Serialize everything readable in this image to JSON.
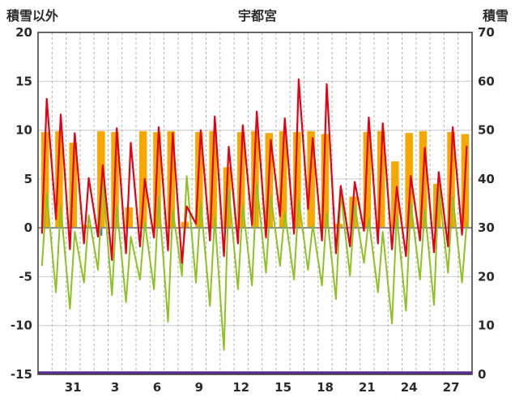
{
  "chart_data": {
    "type": "line",
    "title": "宇都宮",
    "left_axis_title": "積雪以外",
    "right_axis_title": "積雪",
    "left_axis": {
      "min": -15,
      "max": 20,
      "tick_step": 5,
      "tick_labels": [
        "20",
        "15",
        "10",
        "5",
        "0",
        "-5",
        "-10",
        "-15"
      ]
    },
    "right_axis": {
      "min": 0,
      "max": 70,
      "tick_step": 10,
      "tick_labels": [
        "70",
        "60",
        "50",
        "40",
        "30",
        "20",
        "10",
        "0"
      ]
    },
    "x_axis": {
      "num_days": 31,
      "tick_labels": [
        {
          "label": "31",
          "day_index": 2
        },
        {
          "label": "3",
          "day_index": 5
        },
        {
          "label": "6",
          "day_index": 8
        },
        {
          "label": "9",
          "day_index": 11
        },
        {
          "label": "12",
          "day_index": 14
        },
        {
          "label": "15",
          "day_index": 17
        },
        {
          "label": "18",
          "day_index": 20
        },
        {
          "label": "21",
          "day_index": 23
        },
        {
          "label": "24",
          "day_index": 26
        },
        {
          "label": "27",
          "day_index": 29
        }
      ]
    },
    "grid": {
      "horizontal": "solid",
      "vertical": "dashed-per-day"
    },
    "series": {
      "red_line": {
        "kind": "line",
        "color_key": "red",
        "daily_max": [
          13.2,
          11.6,
          9.7,
          5.1,
          6.4,
          10.2,
          8.7,
          5.0,
          10.3,
          9.7,
          2.2,
          10.0,
          11.4,
          8.3,
          10.5,
          11.9,
          9.0,
          11.2,
          15.2,
          9.2,
          14.7,
          4.3,
          4.7,
          11.3,
          10.7,
          4.2,
          5.3,
          8.2,
          5.7,
          10.3,
          8.4
        ],
        "daily_min": [
          -0.6,
          0.9,
          -2.2,
          -1.6,
          -0.9,
          -3.3,
          -2.6,
          -1.9,
          -1.0,
          -2.3,
          -3.6,
          0.4,
          -1.3,
          -2.9,
          -1.6,
          0.3,
          -1.0,
          1.2,
          -0.6,
          1.9,
          -1.3,
          -2.6,
          -1.9,
          -0.3,
          -1.6,
          -2.2,
          -2.9,
          -1.3,
          -2.5,
          -1.9,
          -0.7
        ]
      },
      "green_line": {
        "kind": "line",
        "color_key": "green",
        "daily_max": [
          3.6,
          2.2,
          -0.4,
          1.3,
          4.9,
          2.3,
          -0.9,
          0.6,
          3.2,
          1.9,
          5.3,
          2.6,
          1.1,
          3.9,
          2.3,
          4.6,
          3.3,
          1.6,
          2.9,
          0.3,
          1.6,
          3.6,
          2.3,
          0.9,
          -0.4,
          1.3,
          2.6,
          1.9,
          4.3,
          3.2,
          0.6
        ],
        "daily_min": [
          -3.9,
          -6.6,
          -8.3,
          -5.6,
          -4.3,
          -6.9,
          -7.6,
          -5.3,
          -6.3,
          -9.6,
          -4.9,
          -5.6,
          -8.0,
          -12.5,
          -6.3,
          -5.9,
          -4.6,
          -3.9,
          -5.3,
          -4.3,
          -5.9,
          -7.3,
          -4.9,
          -3.6,
          -6.6,
          -9.8,
          -8.5,
          -5.3,
          -7.9,
          -4.6,
          -5.6
        ]
      },
      "orange_bars": {
        "kind": "bar",
        "color_key": "orange",
        "values": [
          9.8,
          9.9,
          8.7,
          0.3,
          9.9,
          9.8,
          2.1,
          9.9,
          9.8,
          9.9,
          0.6,
          9.8,
          9.9,
          6.2,
          9.8,
          9.9,
          9.7,
          9.9,
          9.8,
          9.9,
          9.6,
          0.4,
          3.2,
          9.8,
          9.9,
          6.8,
          9.7,
          9.9,
          4.5,
          9.8,
          9.6
        ]
      },
      "snow_depth_line": {
        "kind": "line",
        "color_key": "purple",
        "axis": "right",
        "constant_value": 0
      },
      "blue_mark": {
        "kind": "bar",
        "color_key": "blue",
        "day_index": 4,
        "value": -0.8
      }
    }
  },
  "colors": {
    "red": "#e60012",
    "green": "#8dc21f",
    "orange": "#f6a800",
    "purple": "#5c2d91",
    "blue": "#3a6fc4",
    "grid_dashed": "#b0b0b0",
    "grid_solid": "#cccccc",
    "zero_line": "#8a8a8a",
    "border": "#3a3a3a",
    "text": "#2b2b2b",
    "background": "#ffffff"
  }
}
